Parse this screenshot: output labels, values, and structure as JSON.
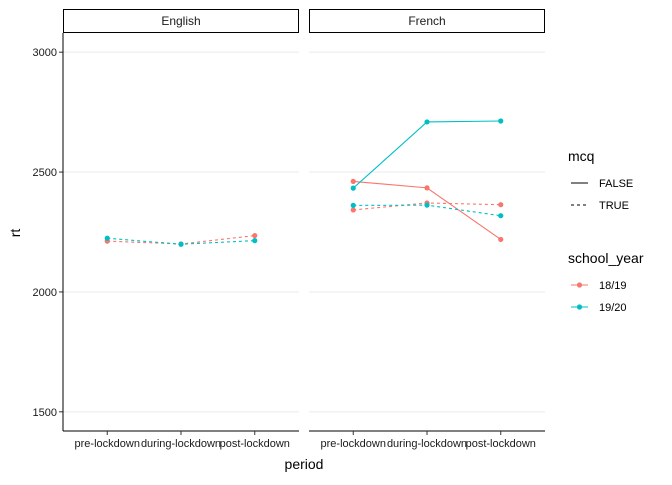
{
  "chart_data": {
    "type": "line",
    "xlabel": "period",
    "ylabel": "rt",
    "ylim": [
      1420,
      3080
    ],
    "yticks": [
      1500,
      2000,
      2500,
      3000
    ],
    "categories": [
      "pre-lockdown",
      "during-lockdown",
      "post-lockdown"
    ],
    "facets": [
      {
        "name": "English",
        "series": [
          {
            "school_year": "18/19",
            "mcq": "TRUE",
            "values": [
              2212,
              2200,
              2235
            ]
          },
          {
            "school_year": "19/20",
            "mcq": "TRUE",
            "values": [
              2224,
              2199,
              2214
            ]
          }
        ]
      },
      {
        "name": "French",
        "series": [
          {
            "school_year": "18/19",
            "mcq": "FALSE",
            "values": [
              2461,
              2434,
              2219
            ]
          },
          {
            "school_year": "18/19",
            "mcq": "TRUE",
            "values": [
              2342,
              2371,
              2364
            ]
          },
          {
            "school_year": "19/20",
            "mcq": "FALSE",
            "values": [
              2433,
              2709,
              2713
            ]
          },
          {
            "school_year": "19/20",
            "mcq": "TRUE",
            "values": [
              2361,
              2362,
              2318
            ]
          }
        ]
      }
    ],
    "legend": {
      "placement": "right",
      "groups": [
        {
          "title": "mcq",
          "entries": [
            {
              "label": "FALSE",
              "linetype": "solid"
            },
            {
              "label": "TRUE",
              "linetype": "dashed"
            }
          ]
        },
        {
          "title": "school_year",
          "entries": [
            {
              "label": "18/19",
              "color": "#F8766D"
            },
            {
              "label": "19/20",
              "color": "#00BFC4"
            }
          ]
        }
      ]
    },
    "colors": {
      "18/19": "#F8766D",
      "19/20": "#00BFC4"
    },
    "grid": "horizontal major"
  }
}
